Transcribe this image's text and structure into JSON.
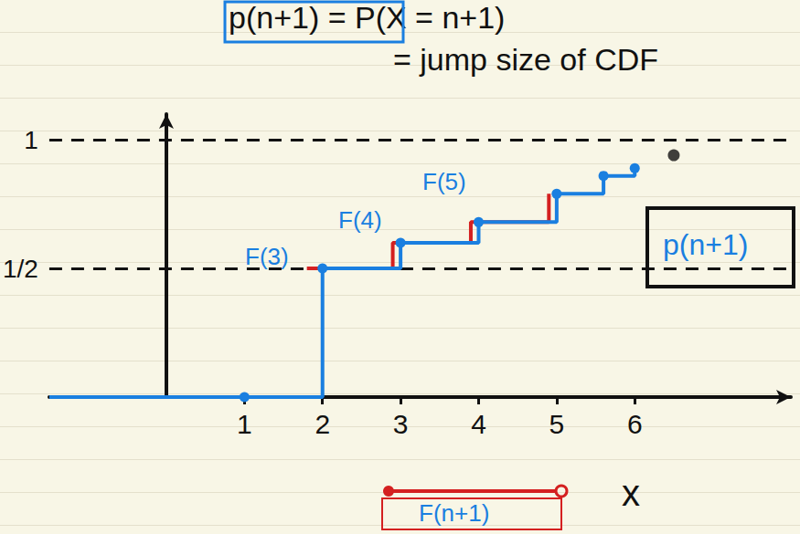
{
  "chart_data": {
    "type": "line",
    "title": "p(n+1) = P(X = n+1)",
    "subtitle": "= jump size of CDF",
    "xlabel": "x",
    "annotations": [
      "F(3)",
      "F(4)",
      "F(5)",
      "p(n+1)",
      "F(n+1)"
    ],
    "xlim": [
      -1.5,
      8
    ],
    "ylim": [
      0,
      1.1
    ],
    "xticks": [
      1,
      2,
      3,
      4,
      5,
      6
    ],
    "yticks": [
      {
        "value": 0.5,
        "label": "1/2"
      },
      {
        "value": 1,
        "label": "1"
      }
    ],
    "grid": true,
    "series": [
      {
        "color": "#1a7fe0",
        "line_style": "step",
        "marker": "circle",
        "x": [
          -1.5,
          1,
          2,
          3,
          4,
          5,
          5.6,
          6
        ],
        "values": [
          0,
          0,
          0.5,
          0.6,
          0.68,
          0.79,
          0.86,
          0.89
        ]
      },
      {
        "color": "#d42020",
        "line_style": "step",
        "marker": "none",
        "x": [
          1.8,
          2.9,
          3.9,
          4.9
        ],
        "values": [
          0.5,
          0.6,
          0.68,
          0.79
        ]
      },
      {
        "type": "scatter",
        "color": "#111111",
        "marker": "circle",
        "x": [
          6.5
        ],
        "values": [
          0.94
        ]
      }
    ]
  }
}
